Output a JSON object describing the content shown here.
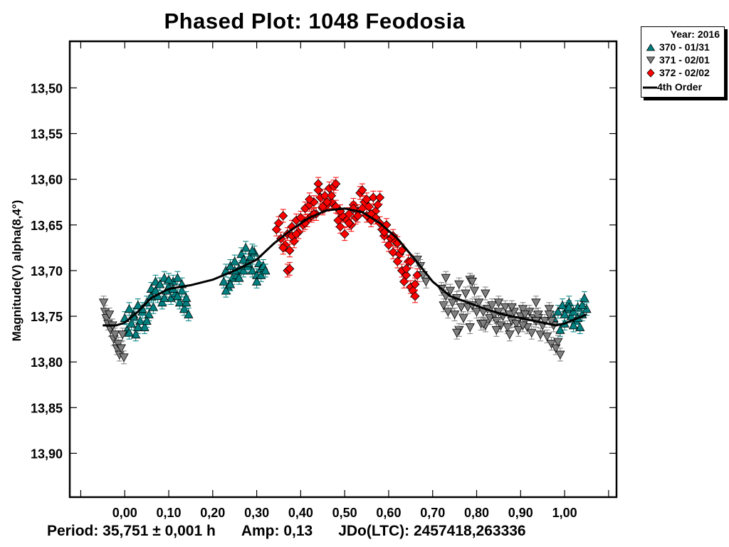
{
  "chart_data": {
    "type": "scatter",
    "title": "Phased Plot: 1048 Feodosia",
    "xlabel": "",
    "ylabel": "Magnitude(V) alpha(8,4°)",
    "xlim": [
      -0.125,
      1.118
    ],
    "ylim": [
      13.449,
      13.948
    ],
    "y_inverted": true,
    "x_ticks": [
      0.0,
      0.1,
      0.2,
      0.3,
      0.4,
      0.5,
      0.6,
      0.7,
      0.8,
      0.9,
      1.0
    ],
    "x_tick_labels": [
      "0,00",
      "0,10",
      "0,20",
      "0,30",
      "0,40",
      "0,50",
      "0,60",
      "0,70",
      "0,80",
      "0,90",
      "1,00"
    ],
    "y_ticks": [
      13.5,
      13.55,
      13.6,
      13.65,
      13.7,
      13.75,
      13.8,
      13.85,
      13.9
    ],
    "y_tick_labels": [
      "13,50",
      "13,55",
      "13,60",
      "13,65",
      "13,70",
      "13,75",
      "13,80",
      "13,85",
      "13,90"
    ],
    "grid": false,
    "legend": {
      "position": "top-right-outside",
      "header": "Year: 2016",
      "entries": [
        {
          "label": "370 - 01/31",
          "marker": "triangle-up",
          "color": "#008080"
        },
        {
          "label": "371 - 02/01",
          "marker": "triangle-down",
          "color": "#808080"
        },
        {
          "label": "372 - 02/02",
          "marker": "diamond",
          "color": "#ff0000"
        },
        {
          "label": "4th Order",
          "marker": "line",
          "color": "#000000"
        }
      ]
    },
    "fit": {
      "name": "4th Order",
      "color": "#000000",
      "x": [
        -0.05,
        -0.02,
        0.0,
        0.03,
        0.06,
        0.1,
        0.15,
        0.2,
        0.25,
        0.3,
        0.34,
        0.38,
        0.42,
        0.46,
        0.5,
        0.54,
        0.58,
        0.62,
        0.66,
        0.7,
        0.74,
        0.78,
        0.82,
        0.86,
        0.9,
        0.94,
        0.98,
        1.0,
        1.03,
        1.05
      ],
      "y": [
        13.76,
        13.76,
        13.757,
        13.745,
        13.73,
        13.72,
        13.716,
        13.71,
        13.7,
        13.688,
        13.67,
        13.655,
        13.642,
        13.634,
        13.632,
        13.636,
        13.648,
        13.665,
        13.688,
        13.712,
        13.728,
        13.735,
        13.742,
        13.748,
        13.752,
        13.756,
        13.76,
        13.758,
        13.752,
        13.748
      ]
    },
    "series": [
      {
        "name": "370 - 01/31",
        "marker": "triangle-up",
        "color": "#008080",
        "x": [
          0.0,
          0.005,
          0.01,
          0.015,
          0.02,
          0.025,
          0.03,
          0.035,
          0.04,
          0.045,
          0.05,
          0.055,
          0.06,
          0.065,
          0.07,
          0.075,
          0.08,
          0.085,
          0.09,
          0.095,
          0.1,
          0.105,
          0.11,
          0.115,
          0.12,
          0.125,
          0.13,
          0.135,
          0.14,
          0.145,
          0.01,
          0.02,
          0.03,
          0.04,
          0.05,
          0.06,
          0.07,
          0.08,
          0.09,
          0.1,
          0.11,
          0.12,
          0.13,
          0.14,
          0.225,
          0.23,
          0.235,
          0.24,
          0.245,
          0.25,
          0.255,
          0.26,
          0.265,
          0.27,
          0.275,
          0.28,
          0.285,
          0.29,
          0.295,
          0.3,
          0.305,
          0.31,
          0.23,
          0.24,
          0.25,
          0.26,
          0.27,
          0.28,
          0.29,
          0.3,
          0.31,
          0.315,
          0.32,
          0.975,
          0.985,
          0.995,
          1.0,
          1.005,
          1.01,
          1.015,
          1.02,
          1.025,
          1.03,
          1.035,
          1.04,
          1.045,
          1.05,
          0.99,
          1.0,
          1.01,
          1.02,
          1.03,
          1.04
        ],
        "y": [
          13.752,
          13.765,
          13.742,
          13.758,
          13.748,
          13.77,
          13.738,
          13.755,
          13.745,
          13.762,
          13.735,
          13.748,
          13.72,
          13.74,
          13.712,
          13.728,
          13.715,
          13.735,
          13.708,
          13.722,
          13.718,
          13.73,
          13.712,
          13.725,
          13.708,
          13.735,
          13.722,
          13.742,
          13.735,
          13.748,
          13.768,
          13.75,
          13.762,
          13.742,
          13.755,
          13.728,
          13.722,
          13.715,
          13.73,
          13.71,
          13.72,
          13.728,
          13.715,
          13.73,
          13.712,
          13.7,
          13.718,
          13.695,
          13.708,
          13.69,
          13.705,
          13.698,
          13.682,
          13.7,
          13.675,
          13.695,
          13.685,
          13.7,
          13.68,
          13.705,
          13.692,
          13.698,
          13.722,
          13.715,
          13.7,
          13.708,
          13.688,
          13.692,
          13.678,
          13.712,
          13.705,
          13.695,
          13.7,
          13.752,
          13.745,
          13.738,
          13.758,
          13.742,
          13.735,
          13.75,
          13.745,
          13.755,
          13.74,
          13.762,
          13.748,
          13.73,
          13.742,
          13.765,
          13.748,
          13.74,
          13.76,
          13.752,
          13.738
        ]
      },
      {
        "name": "371 - 02/01",
        "marker": "triangle-down",
        "color": "#808080",
        "x": [
          -0.048,
          -0.045,
          -0.042,
          -0.038,
          -0.035,
          -0.032,
          -0.028,
          -0.025,
          -0.022,
          -0.018,
          -0.015,
          -0.012,
          -0.008,
          -0.005,
          -0.002,
          0.665,
          0.672,
          0.678,
          0.685,
          0.72,
          0.725,
          0.73,
          0.735,
          0.74,
          0.745,
          0.75,
          0.755,
          0.76,
          0.765,
          0.77,
          0.775,
          0.78,
          0.785,
          0.79,
          0.795,
          0.8,
          0.805,
          0.81,
          0.815,
          0.82,
          0.825,
          0.83,
          0.835,
          0.84,
          0.845,
          0.85,
          0.855,
          0.86,
          0.865,
          0.87,
          0.875,
          0.88,
          0.885,
          0.89,
          0.895,
          0.9,
          0.905,
          0.91,
          0.915,
          0.92,
          0.925,
          0.93,
          0.935,
          0.94,
          0.945,
          0.95,
          0.955,
          0.96,
          0.965,
          0.97,
          0.975,
          0.98,
          0.985,
          0.99,
          0.73,
          0.76,
          0.79,
          0.82,
          0.85,
          0.88,
          0.91,
          0.94,
          0.97,
          0.755,
          0.785,
          0.815,
          0.845,
          0.875,
          0.905,
          0.935,
          0.965
        ],
        "y": [
          13.735,
          13.745,
          13.752,
          13.758,
          13.748,
          13.765,
          13.76,
          13.775,
          13.77,
          13.785,
          13.78,
          13.792,
          13.785,
          13.77,
          13.795,
          13.688,
          13.695,
          13.705,
          13.712,
          13.72,
          13.738,
          13.728,
          13.745,
          13.722,
          13.735,
          13.748,
          13.73,
          13.765,
          13.74,
          13.752,
          13.725,
          13.74,
          13.71,
          13.738,
          13.722,
          13.745,
          13.735,
          13.758,
          13.745,
          13.76,
          13.742,
          13.752,
          13.738,
          13.748,
          13.755,
          13.745,
          13.76,
          13.75,
          13.74,
          13.762,
          13.748,
          13.755,
          13.745,
          13.758,
          13.765,
          13.75,
          13.742,
          13.755,
          13.762,
          13.745,
          13.768,
          13.752,
          13.735,
          13.748,
          13.77,
          13.76,
          13.755,
          13.772,
          13.742,
          13.78,
          13.76,
          13.785,
          13.778,
          13.792,
          13.708,
          13.715,
          13.712,
          13.725,
          13.735,
          13.74,
          13.748,
          13.752,
          13.755,
          13.768,
          13.762,
          13.758,
          13.765,
          13.77,
          13.76,
          13.755,
          13.748
        ]
      },
      {
        "name": "372 - 02/02",
        "marker": "diamond",
        "color": "#ff0000",
        "x": [
          0.345,
          0.35,
          0.355,
          0.36,
          0.365,
          0.37,
          0.375,
          0.38,
          0.385,
          0.39,
          0.395,
          0.4,
          0.405,
          0.41,
          0.415,
          0.42,
          0.425,
          0.43,
          0.435,
          0.44,
          0.445,
          0.45,
          0.455,
          0.46,
          0.465,
          0.47,
          0.475,
          0.48,
          0.485,
          0.49,
          0.495,
          0.5,
          0.505,
          0.51,
          0.515,
          0.52,
          0.525,
          0.53,
          0.535,
          0.54,
          0.545,
          0.55,
          0.555,
          0.56,
          0.565,
          0.57,
          0.575,
          0.58,
          0.585,
          0.59,
          0.595,
          0.6,
          0.605,
          0.61,
          0.615,
          0.62,
          0.625,
          0.63,
          0.635,
          0.64,
          0.645,
          0.65,
          0.655,
          0.66,
          0.665,
          0.37,
          0.375,
          0.36,
          0.38,
          0.39,
          0.41,
          0.43,
          0.45,
          0.47,
          0.49,
          0.51,
          0.53,
          0.55,
          0.57,
          0.59,
          0.61,
          0.63,
          0.65,
          0.42,
          0.44,
          0.46,
          0.48,
          0.52,
          0.54,
          0.56,
          0.58,
          0.62,
          0.64,
          0.66
        ],
        "y": [
          13.655,
          13.648,
          13.665,
          13.64,
          13.672,
          13.66,
          13.678,
          13.652,
          13.668,
          13.645,
          13.658,
          13.642,
          13.65,
          13.632,
          13.645,
          13.628,
          13.64,
          13.625,
          13.638,
          13.605,
          13.62,
          13.632,
          13.618,
          13.628,
          13.61,
          13.625,
          13.608,
          13.63,
          13.645,
          13.652,
          13.64,
          13.66,
          13.645,
          13.638,
          13.65,
          13.628,
          13.642,
          13.635,
          13.615,
          13.632,
          13.625,
          13.64,
          13.63,
          13.645,
          13.62,
          13.635,
          13.628,
          13.648,
          13.655,
          13.662,
          13.65,
          13.672,
          13.665,
          13.68,
          13.668,
          13.69,
          13.682,
          13.7,
          13.712,
          13.705,
          13.69,
          13.718,
          13.722,
          13.728,
          13.705,
          13.7,
          13.698,
          13.675,
          13.662,
          13.66,
          13.648,
          13.638,
          13.63,
          13.618,
          13.635,
          13.648,
          13.64,
          13.622,
          13.642,
          13.658,
          13.662,
          13.678,
          13.69,
          13.622,
          13.612,
          13.625,
          13.605,
          13.632,
          13.612,
          13.638,
          13.62,
          13.67,
          13.698,
          13.715
        ]
      }
    ]
  },
  "footer": {
    "period": "Period: 35,751 ± 0,001 h",
    "amp": "Amp: 0,13",
    "jdo": "JDo(LTC): 2457418,263336"
  }
}
